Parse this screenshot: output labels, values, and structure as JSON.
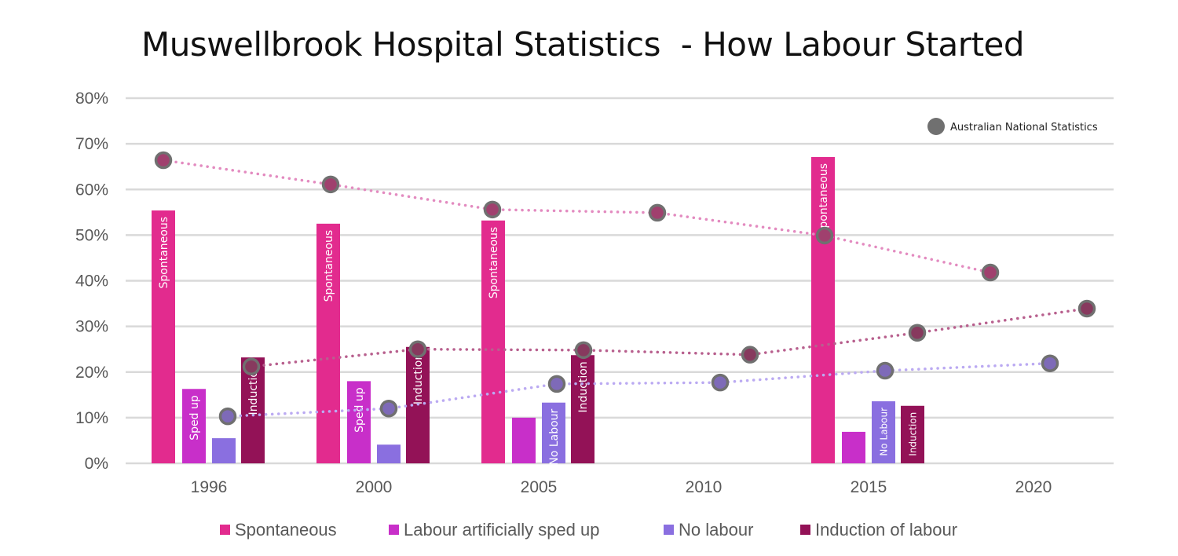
{
  "chart_data": {
    "type": "bar",
    "title": "Muswellbrook Hospital Statistics  - How Labour Started",
    "xlabel": "",
    "ylabel": "",
    "ylim": [
      0,
      80
    ],
    "y_ticks": [
      "0%",
      "10%",
      "20%",
      "30%",
      "40%",
      "50%",
      "60%",
      "70%",
      "80%"
    ],
    "grid": true,
    "categories": [
      "1996",
      "2000",
      "2005",
      "2010",
      "2015",
      "2020"
    ],
    "series": [
      {
        "name": "Spontaneous",
        "color": "#E22B8E",
        "values": [
          55.4,
          52.5,
          53.2,
          null,
          67.1,
          null
        ],
        "bar_labels": [
          "Spontaneous",
          "Spontaneous",
          "Spontaneous",
          "",
          "Spontaneous",
          ""
        ]
      },
      {
        "name": "Labour artificially sped up",
        "color": "#C82FC9",
        "values": [
          16.3,
          18.0,
          10.0,
          null,
          6.9,
          null
        ],
        "bar_labels": [
          "Sped up",
          "Sped up",
          "",
          "",
          "",
          ""
        ]
      },
      {
        "name": "No labour",
        "color": "#8A6FE0",
        "values": [
          5.5,
          4.1,
          13.3,
          null,
          13.6,
          null
        ],
        "bar_labels": [
          "",
          "",
          "No Labour",
          "",
          "No Labour",
          ""
        ]
      },
      {
        "name": "Induction of labour",
        "color": "#931257",
        "values": [
          23.2,
          25.5,
          23.7,
          null,
          12.6,
          null
        ],
        "bar_labels": [
          "Induction",
          "Induction",
          "Induction",
          "",
          "Induction",
          ""
        ]
      }
    ],
    "national": {
      "name": "Australian National Statistics",
      "marker_color": "#707070",
      "series": [
        {
          "of": "Spontaneous",
          "values": [
            66.4,
            61.1,
            55.6,
            54.9,
            49.9,
            41.8
          ],
          "line_color": "#E38BC0",
          "fill": "#A0406E"
        },
        {
          "of": "No labour",
          "values": [
            10.3,
            12.0,
            17.4,
            17.7,
            20.3,
            21.9
          ],
          "line_color": "#BBAAF2",
          "fill": "#7E6AB8"
        },
        {
          "of": "Induction of labour",
          "values": [
            21.2,
            25.0,
            24.8,
            23.8,
            28.6,
            33.9
          ],
          "line_color": "#B8608E",
          "fill": "#87395E"
        }
      ]
    },
    "legend_position": "bottom"
  }
}
